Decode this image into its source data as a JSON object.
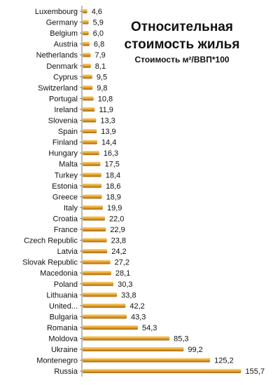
{
  "chart_data": {
    "type": "bar",
    "orientation": "horizontal",
    "title_lines": [
      "Относительная",
      "стоимость жилья"
    ],
    "subtitle": "Стоимость м²/ВВП*100",
    "categories": [
      "Luxembourg",
      "Germany",
      "Belgium",
      "Austria",
      "Netherlands",
      "Denmark",
      "Cyprus",
      "Switzerland",
      "Portugal",
      "Ireland",
      "Slovenia",
      "Spain",
      "Finland",
      "Hungary",
      "Malta",
      "Turkey",
      "Estonia",
      "Greece",
      "Italy",
      "Croatia",
      "France",
      "Czech Republic",
      "Latvia",
      "Slovak Republic",
      "Macedonia",
      "Poland",
      "Lithuania",
      "United...",
      "Bulgaria",
      "Romania",
      "Moldova",
      "Ukraine",
      "Montenegro",
      "Russia"
    ],
    "values": [
      4.6,
      5.9,
      6.0,
      6.8,
      7.9,
      8.1,
      9.5,
      9.8,
      10.8,
      11.9,
      13.3,
      13.9,
      14.4,
      16.3,
      17.5,
      18.4,
      18.6,
      18.9,
      19.9,
      22.0,
      22.9,
      23.8,
      24.2,
      27.2,
      28.1,
      30.3,
      33.8,
      42.2,
      43.3,
      54.3,
      85.3,
      99.2,
      125.2,
      155.7
    ],
    "value_labels": [
      "4,6",
      "5,9",
      "6,0",
      "6,8",
      "7,9",
      "8,1",
      "9,5",
      "9,8",
      "10,8",
      "11,9",
      "13,3",
      "13,9",
      "14,4",
      "16,3",
      "17,5",
      "18,4",
      "18,6",
      "18,9",
      "19,9",
      "22,0",
      "22,9",
      "23,8",
      "24,2",
      "27,2",
      "28,1",
      "30,3",
      "33,8",
      "42,2",
      "43,3",
      "54,3",
      "85,3",
      "99,2",
      "125,2",
      "155,7"
    ],
    "grid": false,
    "legend": "none",
    "bar_color": "#e4a12c"
  }
}
